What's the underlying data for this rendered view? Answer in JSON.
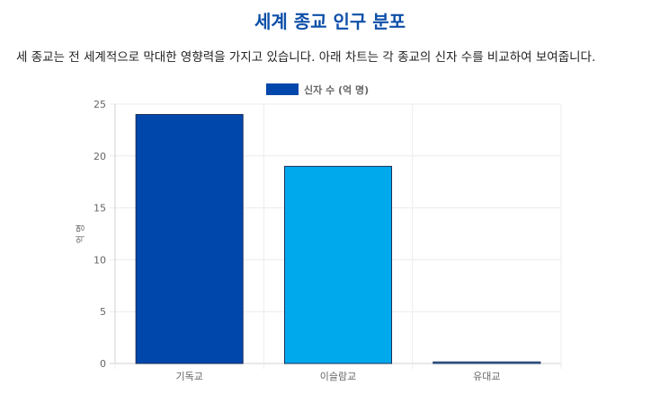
{
  "page": {
    "title": "세계 종교 인구 분포",
    "description": "세 종교는 전 세계적으로 막대한 영향력을 가지고 있습니다. 아래 차트는 각 종교의 신자 수를 비교하여 보여줍니다."
  },
  "chart_data": {
    "type": "bar",
    "categories": [
      "기독교",
      "이슬람교",
      "유대교"
    ],
    "series": [
      {
        "name": "신자 수 (억 명)",
        "values": [
          24,
          19,
          0.15
        ]
      }
    ],
    "colors": [
      "#0047ab",
      "#00a8ec",
      "#4a90c8"
    ],
    "border_color": "#1a2e5a",
    "legend_color": "#0047ab",
    "xlabel": "",
    "ylabel": "억 명",
    "ylim": [
      0,
      25
    ],
    "yticks": [
      0,
      5,
      10,
      15,
      20,
      25
    ],
    "grid": true,
    "legend_position": "top"
  }
}
